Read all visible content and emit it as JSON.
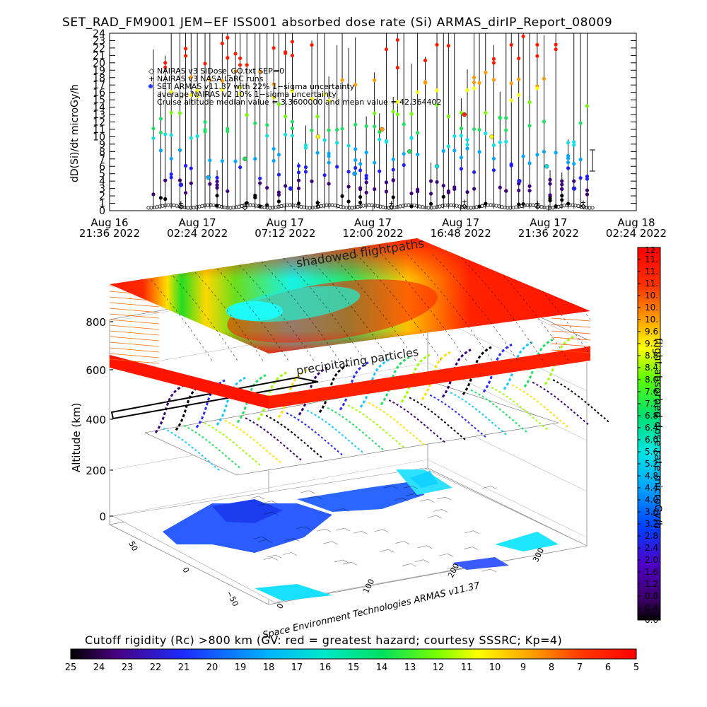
{
  "title": "SET_RAD_FM9001  JEM−EF ISS001 absorbed dose rate (Si) ARMAS_dirIP_Report_08009",
  "timeseries": {
    "ylabel": "dD(Si)/dt microGy/h",
    "yticks": [
      "0",
      "1",
      "2",
      "3",
      "4",
      "5",
      "6",
      "7",
      "8",
      "9",
      "10",
      "11",
      "12",
      "13",
      "14",
      "15",
      "16",
      "17",
      "18",
      "19",
      "20",
      "21",
      "22",
      "23",
      "24"
    ],
    "ylim": [
      0,
      24
    ],
    "xticks": [
      {
        "line1": "Aug 16",
        "line2": "21:36 2022"
      },
      {
        "line1": "Aug 17",
        "line2": "02:24 2022"
      },
      {
        "line1": "Aug 17",
        "line2": "07:12 2022"
      },
      {
        "line1": "Aug 17",
        "line2": "12:00 2022"
      },
      {
        "line1": "Aug 17",
        "line2": "16:48 2022"
      },
      {
        "line1": "Aug 17",
        "line2": "21:36 2022"
      },
      {
        "line1": "Aug 18",
        "line2": "02:24 2022"
      }
    ],
    "legend": [
      "NAIRAS v3 SiDose_GO.txt SEP=0",
      "NAIRAS v3 NASA LaRC runs",
      "SET ARMAS v11.37 with 22% 1−sigma uncertainty",
      "average NAIRAS v2 10% 1−sigma uncertainty",
      "Cruise altitude median value = 3.3600000 and mean value = 42.364402"
    ]
  },
  "scene": {
    "zlabel": "Altitude (km)",
    "zticks": [
      "0",
      "200",
      "400",
      "600",
      "800"
    ],
    "lat_ticks": [
      "50",
      "0",
      "−50"
    ],
    "lon_ticks": [
      "0",
      "100",
      "200",
      "300"
    ],
    "layer_labels": {
      "top": "shadowed flightpaths",
      "middle": "precipitating particles"
    }
  },
  "colorbar_right": {
    "label": "flight absorbed dose rate microGy/h",
    "ticks": [
      "0.0",
      "0.4",
      "0.8",
      "1.2",
      "1.6",
      "2.0",
      "2.4",
      "2.8",
      "3.2",
      "3.6",
      "4.0",
      "4.4",
      "4.8",
      "5.2",
      "5.6",
      "6.0",
      "6.4",
      "6.8",
      "7.2",
      "7.6",
      "8.0",
      "8.4",
      "8.8",
      "9.2",
      "9.6",
      "10.",
      "10.",
      "10.",
      "11.",
      "11.",
      "11.",
      "12."
    ]
  },
  "colorbar_bottom": {
    "label": "Cutoff rigidity (Rc) >800 km (GV: red = greatest hazard; courtesy SSSRC; Kp=4)",
    "ticks": [
      "25",
      "24",
      "23",
      "22",
      "21",
      "20",
      "19",
      "18",
      "17",
      "16",
      "15",
      "14",
      "13",
      "12",
      "11",
      "10",
      "9",
      "8",
      "7",
      "6",
      "5"
    ]
  },
  "credit": "Space Environment Technologies ARMAS v11.37",
  "chart_data": {
    "type": "scatter",
    "title": "SET_RAD_FM9001  JEM−EF ISS001 absorbed dose rate (Si) ARMAS_dirIP_Report_08009",
    "xlabel": "",
    "ylabel": "dD(Si)/dt microGy/h",
    "xlim": [
      "2022-08-16 21:36",
      "2022-08-18 02:24"
    ],
    "ylim": [
      0,
      24
    ],
    "series": [
      {
        "name": "SET ARMAS v11.37 with 22% 1−sigma uncertainty",
        "marker": "filled circle",
        "x": [
          "2022-08-17 01:30",
          "2022-08-17 03:00",
          "2022-08-17 05:00",
          "2022-08-17 07:30",
          "2022-08-17 09:00",
          "2022-08-17 11:00",
          "2022-08-17 12:30",
          "2022-08-17 14:00",
          "2022-08-17 15:30",
          "2022-08-17 17:00",
          "2022-08-17 18:30",
          "2022-08-17 20:00",
          "2022-08-17 21:30",
          "2022-08-17 23:00"
        ],
        "y": [
          3.5,
          4.5,
          7.0,
          3.0,
          10.0,
          5.0,
          11.0,
          8.0,
          6.0,
          13.0,
          10.0,
          4.0,
          6.0,
          3.0
        ]
      },
      {
        "name": "NAIRAS v3 SiDose_GO.txt SEP=0",
        "marker": "diamond",
        "x": [
          "2022-08-17 01:30",
          "2022-08-17 05:00",
          "2022-08-17 09:00",
          "2022-08-17 13:00",
          "2022-08-17 17:00",
          "2022-08-17 21:00",
          "2022-08-17 23:30"
        ],
        "y": [
          0.5,
          0.4,
          0.6,
          0.5,
          0.6,
          0.5,
          0.6
        ]
      },
      {
        "name": "NAIRAS v3 NASA LaRC runs",
        "marker": "plus",
        "x": [
          "2022-08-17 01:30",
          "2022-08-17 05:00",
          "2022-08-17 09:00",
          "2022-08-17 13:00",
          "2022-08-17 17:00",
          "2022-08-17 21:00",
          "2022-08-17 23:30"
        ],
        "y": [
          1.0,
          0.9,
          1.1,
          1.0,
          1.2,
          1.0,
          1.1
        ]
      }
    ],
    "legend_position": "top-left"
  }
}
